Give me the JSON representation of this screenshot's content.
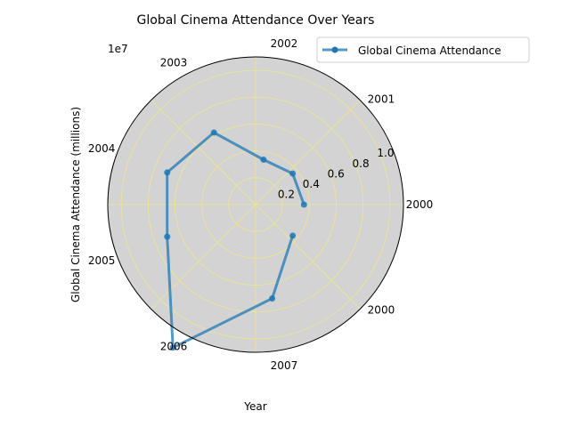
{
  "chart_data": {
    "type": "line",
    "projection": "polar",
    "title": "Global Cinema Attendance Over Years",
    "xlabel": "Year",
    "ylabel": "Global Cinema Attendance (millions)",
    "y_offset_text": "1e7",
    "categories": [
      "2000",
      "2001",
      "2002",
      "2003",
      "2004",
      "2005",
      "2006",
      "2007",
      "2000"
    ],
    "radial_ticks": [
      "0.2",
      "0.4",
      "0.6",
      "0.8",
      "1.0"
    ],
    "radial_tick_values": [
      0.2,
      0.4,
      0.6,
      0.8,
      1.0
    ],
    "ylim": [
      0,
      1.1
    ],
    "series": [
      {
        "name": "Global Cinema Attendance",
        "values": [
          0.36,
          0.36,
          0.34,
          0.62,
          0.7,
          0.7,
          1.23,
          0.71,
          0.36
        ],
        "unit_multiplier": 10000000
      }
    ],
    "legend": "top-right",
    "grid": true,
    "colors": {
      "line": "#1f77b4",
      "plot_background": "#d3d3d3",
      "grid": "#f0e68c"
    }
  }
}
